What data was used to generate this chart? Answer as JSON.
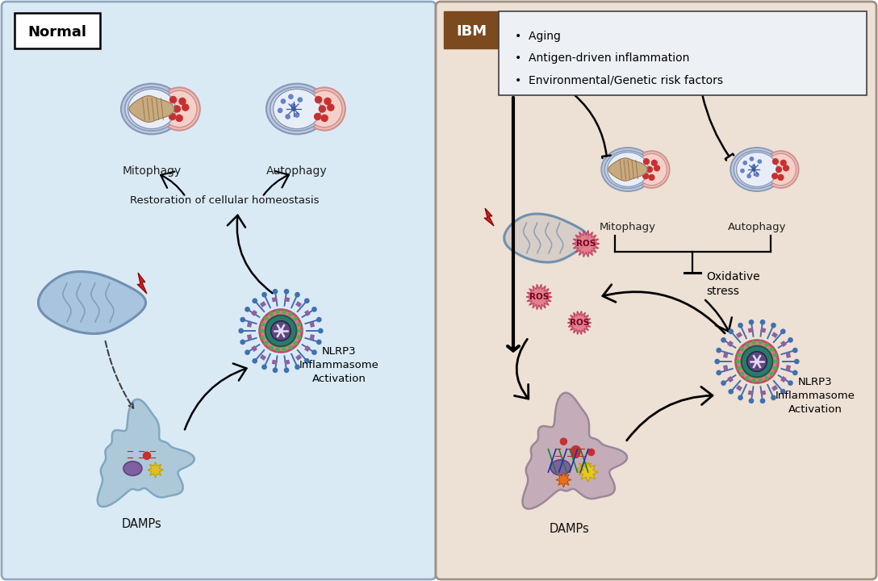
{
  "left_panel_bg": "#daeaf5",
  "right_panel_bg": "#ede0d4",
  "left_label": "Normal",
  "right_label": "IBM",
  "right_label_bg": "#7B4A1E",
  "right_label_color": "#ffffff",
  "bullet_points": [
    "Aging",
    "Antigen-driven inflammation",
    "Environmental/Genetic risk factors"
  ],
  "mitophagy_label": "Mitophagy",
  "autophagy_label": "Autophagy",
  "homeostasis_label": "Restoration of cellular homeostasis",
  "inflammasome_label": "NLRP3\nInflammasome\nActivation",
  "damps_label": "DAMPs",
  "oxidative_stress_label": "Oxidative\nstress",
  "ros_label": "ROS",
  "vesicle_outer": "#c8d4e8",
  "vesicle_inner": "#dde5f2",
  "vesicle_bud": "#f5cdc8",
  "vesicle_bud_border": "#d09090",
  "vesicle_border": "#8898b8",
  "inflammasome_center": "#5a4a7a",
  "inflammasome_ring1": "#2a7a6a",
  "inflammasome_ring2": "#e87090",
  "inflammasome_spike_blue": "#4070b0",
  "inflammasome_spike_purple": "#9060a0",
  "damps_color_left": "#adc8d8",
  "damps_color_right": "#c4adb8",
  "mito_fill": "#a8c0d8",
  "mito_border": "#7090b0",
  "lightning_color": "#cc2020",
  "ros_fill": "#e07888",
  "ros_border": "#c04060",
  "ros_text": "#7a0020"
}
